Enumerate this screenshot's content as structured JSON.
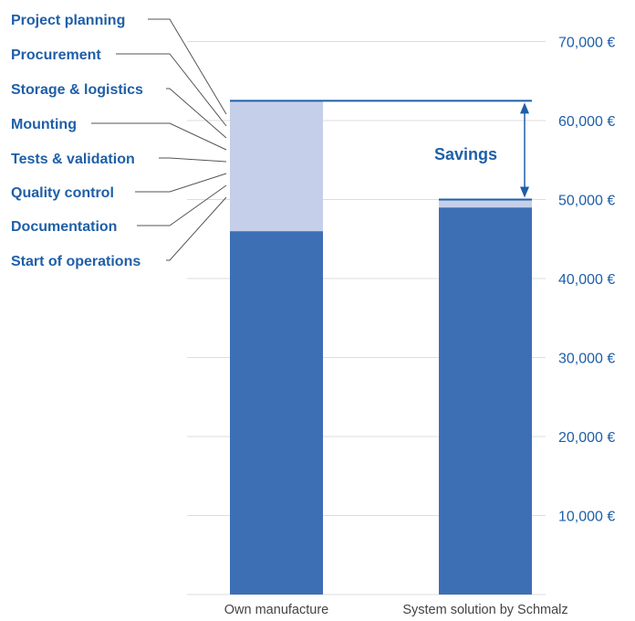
{
  "colors": {
    "base": "#3d6fb5",
    "overhead": "#c5cfe9",
    "text": "#1f5fa8",
    "grid": "#dddddd"
  },
  "chart_data": {
    "type": "bar",
    "stacked": true,
    "categories": [
      "Own manufacture",
      "System solution by Schmalz"
    ],
    "series": [
      {
        "values": [
          46000,
          49000
        ]
      },
      {
        "values": [
          16500,
          1000
        ]
      }
    ],
    "totals": [
      62500,
      50000
    ],
    "yticks": [
      10000,
      20000,
      30000,
      40000,
      50000,
      60000,
      70000
    ],
    "ytick_labels": [
      "10,000 €",
      "20,000 €",
      "30,000 €",
      "40,000 €",
      "50,000 €",
      "60,000 €",
      "70,000 €"
    ],
    "ylim": [
      0,
      70000
    ],
    "grid": true,
    "annotation": "Savings",
    "process_labels": [
      "Project planning",
      "Procurement",
      "Storage & logistics",
      "Mounting",
      "Tests & validation",
      "Quality control",
      "Documentation",
      "Start of operations"
    ]
  }
}
